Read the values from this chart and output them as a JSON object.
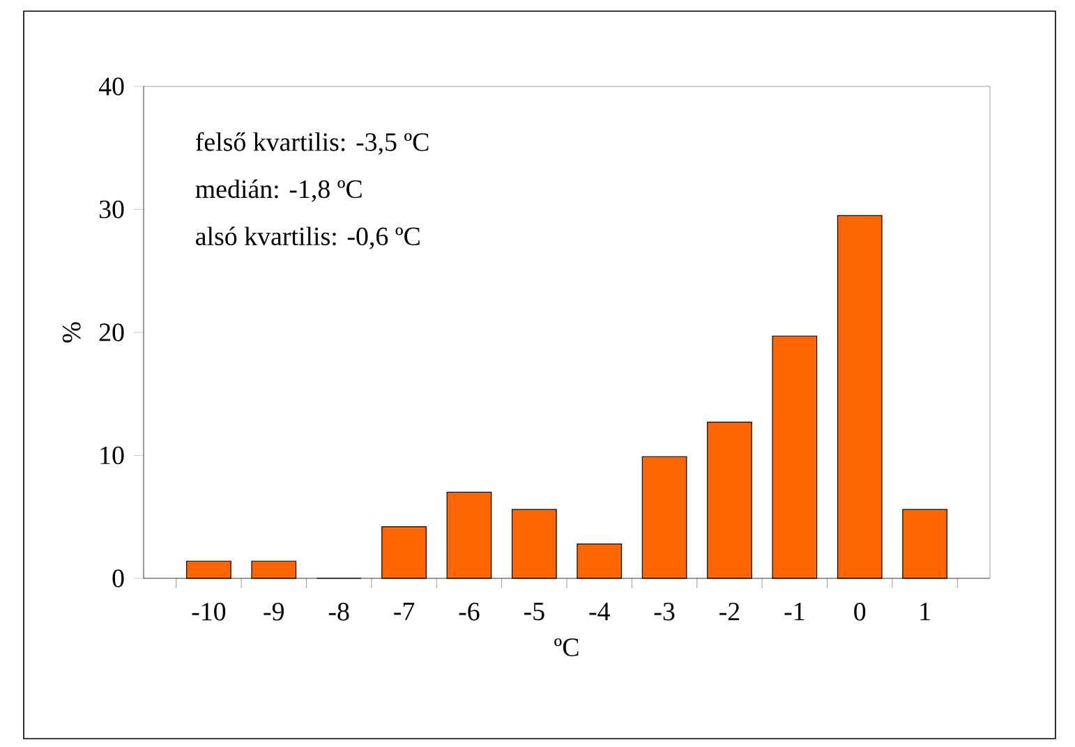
{
  "chart_data": {
    "type": "bar",
    "categories": [
      "-10",
      "-9",
      "-8",
      "-7",
      "-6",
      "-5",
      "-4",
      "-3",
      "-2",
      "-1",
      "0",
      "1"
    ],
    "values": [
      1.4,
      1.4,
      0,
      4.2,
      7.0,
      5.6,
      2.8,
      9.9,
      12.7,
      19.7,
      29.5,
      5.6
    ],
    "color": "#ff6600",
    "xlabel": "ºC",
    "ylabel": "%",
    "ylim": [
      0,
      40
    ],
    "yticks": [
      0,
      10,
      20,
      30,
      40
    ],
    "annotations": [
      "felső kvartilis: -3,5 ºC",
      "medián: -1,8 ºC",
      "alsó kvartilis: -0,6 ºC"
    ]
  }
}
